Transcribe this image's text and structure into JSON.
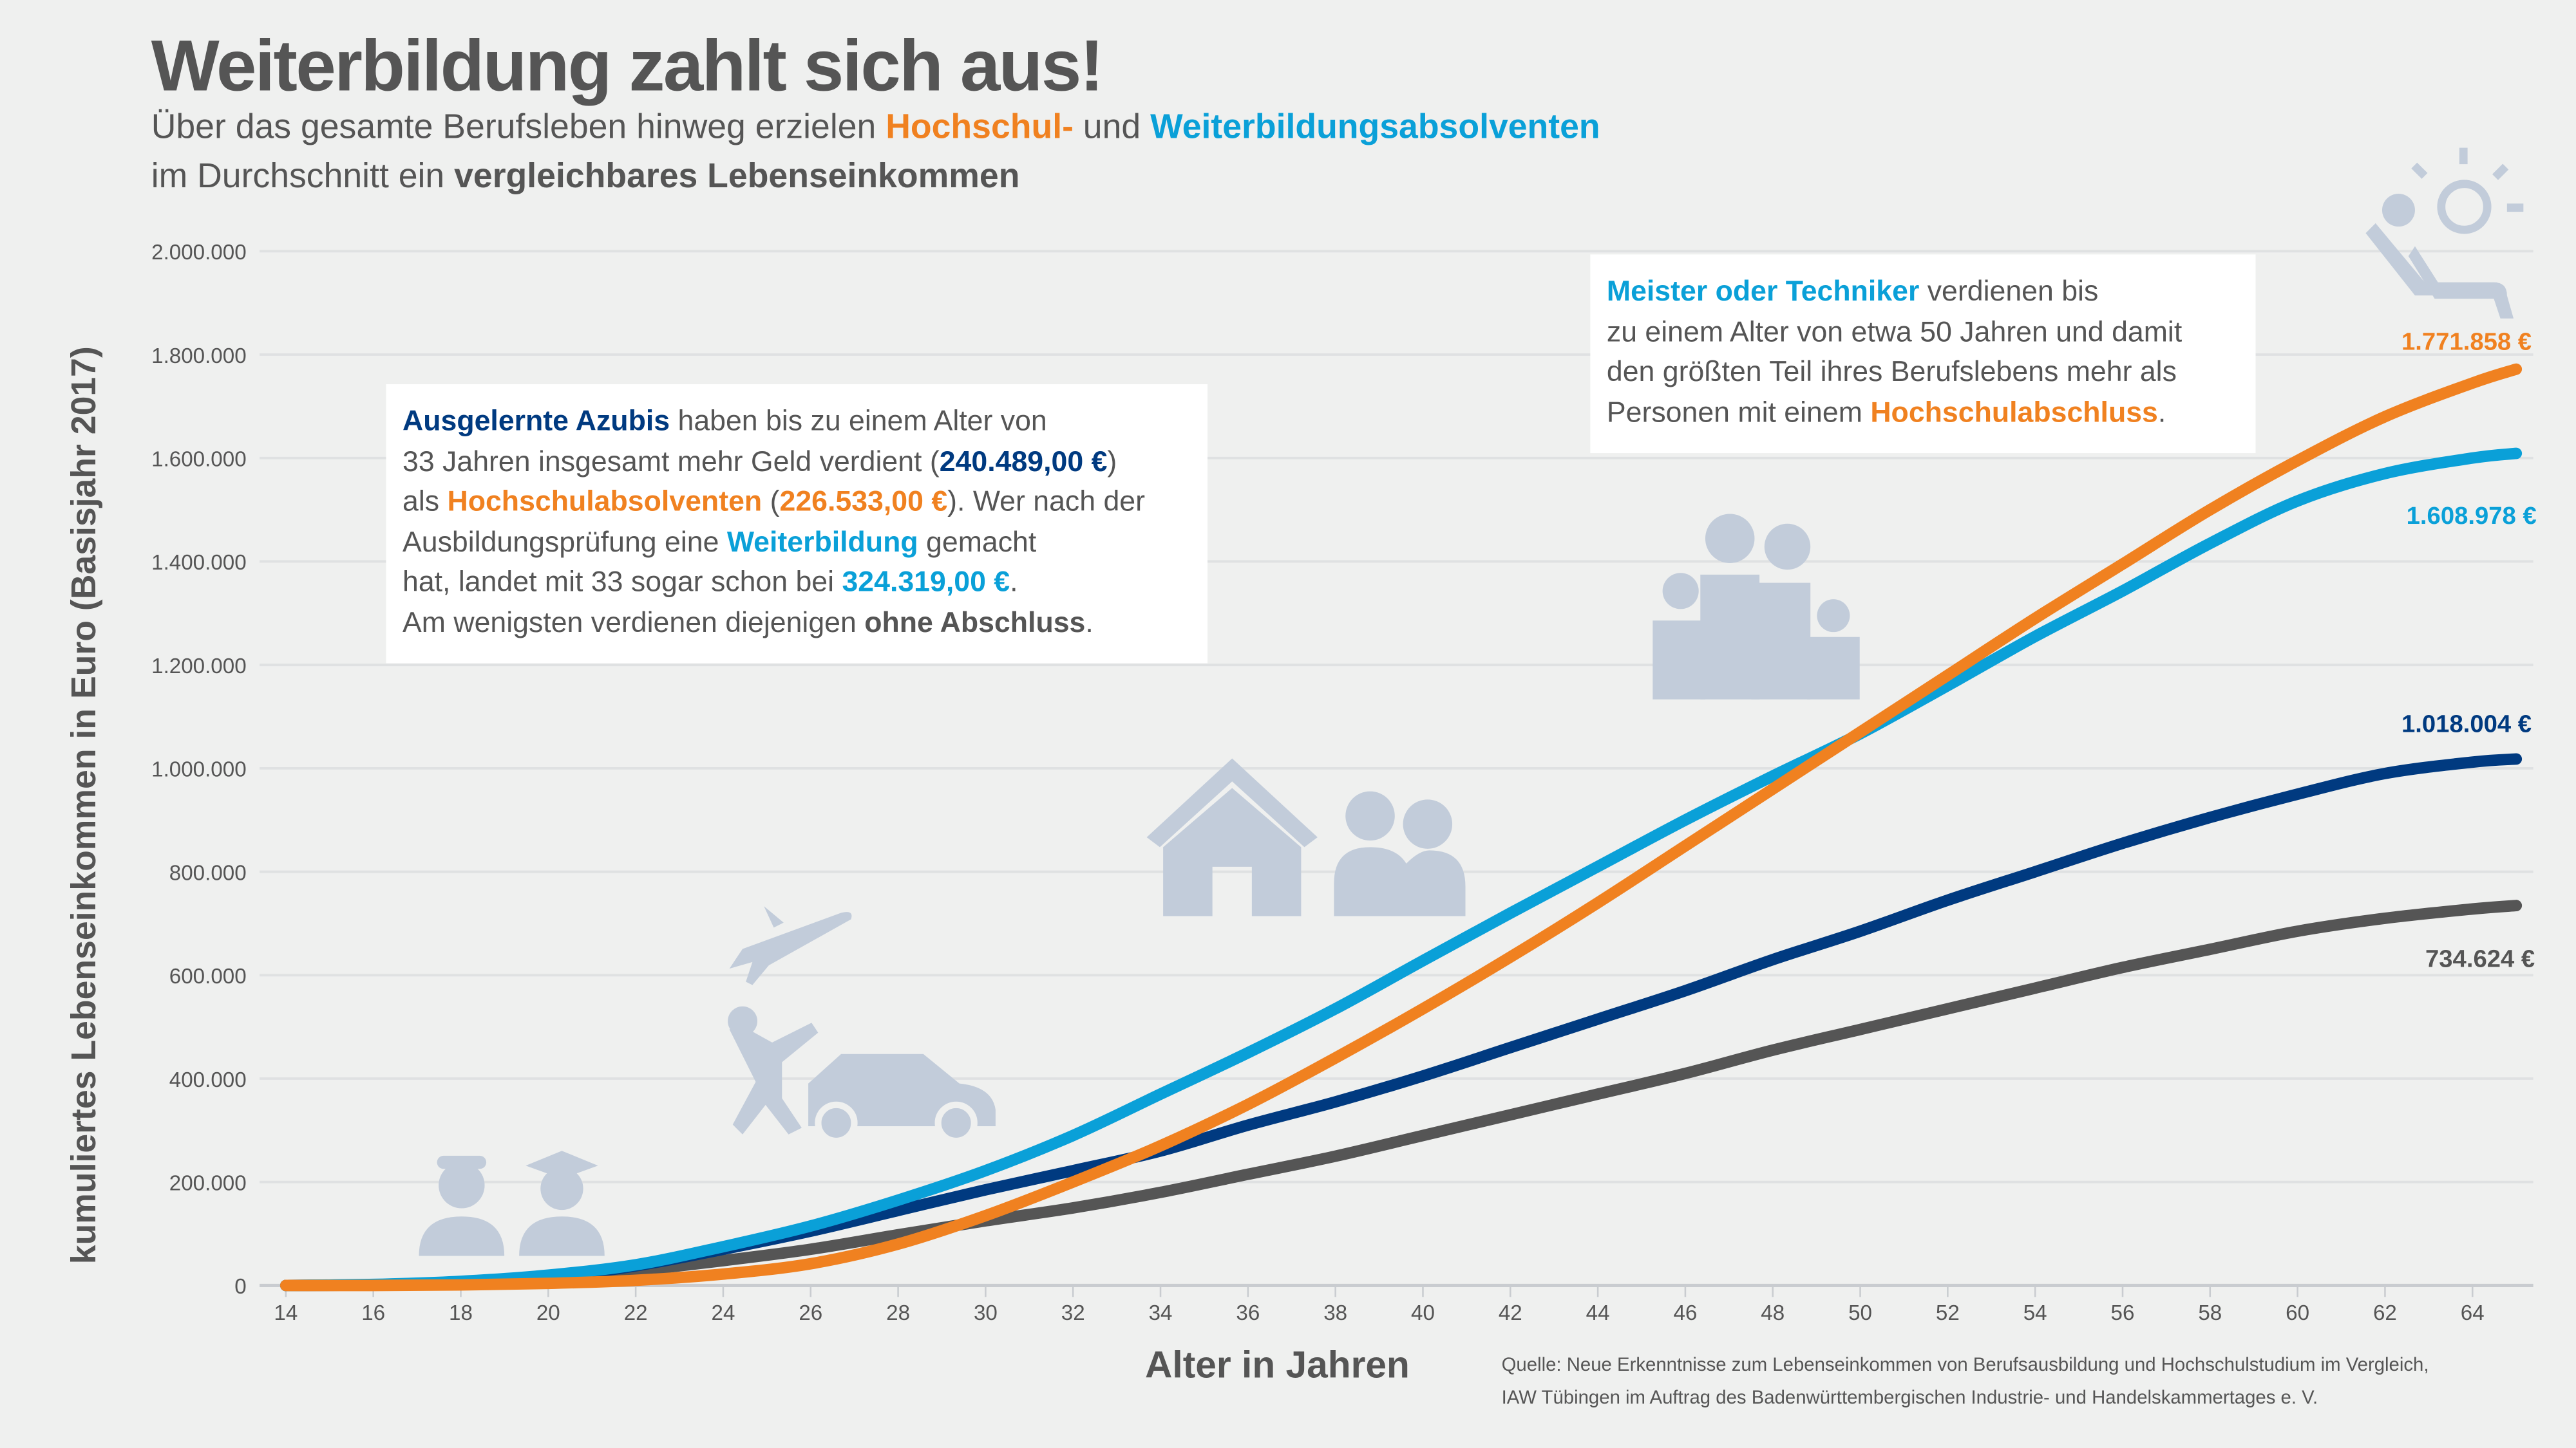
{
  "title": "Weiterbildung zahlt sich aus!",
  "subtitle_lines": [
    [
      {
        "t": "Über das gesamte Berufsleben hinweg erzielen "
      },
      {
        "t": "Hochschul-",
        "c": "#f08120",
        "b": true
      },
      {
        "t": " und "
      },
      {
        "t": "Weiterbildungsabsolventen",
        "c": "#0aa0d8",
        "b": true
      }
    ],
    [
      {
        "t": "im Durchschnitt ein "
      },
      {
        "t": "vergleichbares Lebenseinkommen",
        "b": true
      }
    ]
  ],
  "box_left": [
    [
      {
        "t": "Ausgelernte Azubis",
        "c": "#003a80",
        "b": true
      },
      {
        "t": " haben bis zu einem Alter von"
      }
    ],
    [
      {
        "t": "33 Jahren insgesamt mehr Geld verdient ("
      },
      {
        "t": "240.489,00 €",
        "c": "#003a80",
        "b": true
      },
      {
        "t": ")"
      }
    ],
    [
      {
        "t": "als "
      },
      {
        "t": "Hochschulabsolventen",
        "c": "#f08120",
        "b": true
      },
      {
        "t": " ("
      },
      {
        "t": "226.533,00 €",
        "c": "#f08120",
        "b": true
      },
      {
        "t": "). Wer nach der"
      }
    ],
    [
      {
        "t": "Ausbildungsprüfung eine "
      },
      {
        "t": "Weiterbildung",
        "c": "#0aa0d8",
        "b": true
      },
      {
        "t": " gemacht"
      }
    ],
    [
      {
        "t": "hat, landet mit 33 sogar schon bei "
      },
      {
        "t": "324.319,00 €",
        "c": "#0aa0d8",
        "b": true
      },
      {
        "t": "."
      }
    ],
    [
      {
        "t": "Am wenigsten verdienen diejenigen "
      },
      {
        "t": "ohne Abschluss",
        "b": true
      },
      {
        "t": "."
      }
    ]
  ],
  "box_right": [
    [
      {
        "t": "Meister oder Techniker",
        "c": "#0aa0d8",
        "b": true
      },
      {
        "t": " verdienen bis"
      }
    ],
    [
      {
        "t": "zu einem Alter von etwa 50 Jahren und damit"
      }
    ],
    [
      {
        "t": "den größten Teil ihres Berufslebens mehr als"
      }
    ],
    [
      {
        "t": "Personen mit einem "
      },
      {
        "t": "Hochschulabschluss",
        "c": "#f08120",
        "b": true
      },
      {
        "t": "."
      }
    ]
  ],
  "source": [
    "Quelle: Neue Erkenntnisse zum Lebenseinkommen von Berufsausbildung und Hochschulstudium im Vergleich,",
    "IAW Tübingen im Auftrag des Badenwürttembergischen Industrie- und Handelskammertages e. V."
  ],
  "icons": [
    "worker-icon",
    "graduate-icon",
    "airplane-icon",
    "jumping-person-icon",
    "car-icon",
    "house-icon",
    "couple-icon",
    "family-icon",
    "relaxing-sun-icon"
  ],
  "chart_data": {
    "type": "line",
    "xlabel": "Alter in Jahren",
    "ylabel": "kumuliertes Lebenseinkommen in Euro (Basisjahr 2017)",
    "xlim": [
      14,
      65
    ],
    "ylim": [
      0,
      2000000
    ],
    "x_ticks": [
      "14",
      "16",
      "18",
      "20",
      "22",
      "24",
      "26",
      "28",
      "30",
      "32",
      "34",
      "36",
      "38",
      "40",
      "42",
      "44",
      "46",
      "48",
      "50",
      "52",
      "54",
      "56",
      "58",
      "60",
      "62",
      "64"
    ],
    "y_ticks": [
      "0",
      "200.000",
      "400.000",
      "600.000",
      "800.000",
      "1.000.000",
      "1.200.000",
      "1.400.000",
      "1.600.000",
      "1.800.000",
      "2.000.000"
    ],
    "grid": true,
    "x": [
      14,
      16,
      18,
      20,
      22,
      24,
      26,
      28,
      30,
      32,
      34,
      36,
      38,
      40,
      42,
      44,
      46,
      48,
      50,
      52,
      54,
      56,
      58,
      60,
      62,
      64,
      65
    ],
    "series": [
      {
        "key": "weiterbildung",
        "color": "#0aa0d8",
        "end_label": "1.608.978 €",
        "values": [
          0,
          2000,
          8000,
          20000,
          40000,
          75000,
          115000,
          165000,
          222000,
          290000,
          370000,
          450000,
          535000,
          628000,
          720000,
          810000,
          900000,
          985000,
          1067000,
          1160000,
          1255000,
          1343000,
          1435000,
          1517000,
          1570000,
          1600000,
          1608978
        ]
      },
      {
        "key": "hochschule",
        "color": "#f08120",
        "end_label": "1.771.858 €",
        "values": [
          0,
          0,
          1000,
          4000,
          10000,
          22000,
          42000,
          80000,
          135000,
          200000,
          270000,
          350000,
          440000,
          535000,
          635000,
          740000,
          850000,
          960000,
          1070000,
          1180000,
          1290000,
          1395000,
          1500000,
          1595000,
          1680000,
          1745000,
          1771858
        ]
      },
      {
        "key": "azubis",
        "color": "#003a80",
        "end_label": "1.018.004 €",
        "values": [
          0,
          1000,
          5000,
          15000,
          38000,
          70000,
          105000,
          145000,
          185000,
          222000,
          260000,
          310000,
          355000,
          405000,
          460000,
          515000,
          570000,
          630000,
          685000,
          745000,
          800000,
          855000,
          905000,
          950000,
          990000,
          1012000,
          1018004
        ]
      },
      {
        "key": "ohne_abschluss",
        "color": "#555555",
        "end_label": "734.624 €",
        "values": [
          0,
          1000,
          4000,
          10000,
          28000,
          48000,
          70000,
          98000,
          125000,
          150000,
          180000,
          215000,
          250000,
          290000,
          330000,
          370000,
          410000,
          455000,
          495000,
          535000,
          575000,
          615000,
          650000,
          685000,
          710000,
          728000,
          734624
        ]
      }
    ]
  }
}
